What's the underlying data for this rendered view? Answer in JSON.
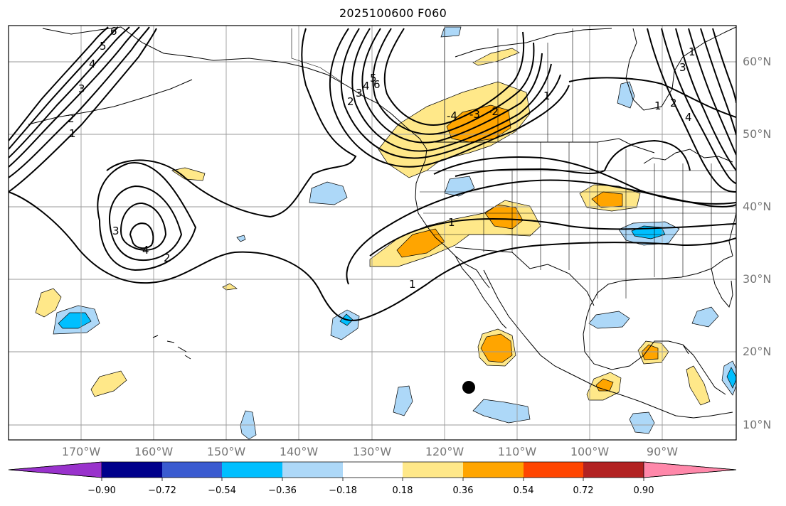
{
  "title": "2025100600 F060",
  "lat_labels": [
    "60°N",
    "50°N",
    "40°N",
    "30°N",
    "20°N",
    "10°N"
  ],
  "lon_labels": [
    "170°W",
    "160°W",
    "150°W",
    "140°W",
    "130°W",
    "120°W",
    "110°W",
    "100°W",
    "90°W"
  ],
  "contour_labels": [
    "6",
    "5",
    "4",
    "3",
    "2",
    "1",
    "1",
    "2",
    "3",
    "4",
    "1",
    "2",
    "3",
    "4",
    "5",
    "6",
    "1",
    "2",
    "3",
    "4",
    "-4",
    "-3",
    "-2",
    "1",
    "1"
  ],
  "colorbar": {
    "ticks": [
      "−0.90",
      "−0.72",
      "−0.54",
      "−0.36",
      "−0.18",
      "0.18",
      "0.36",
      "0.54",
      "0.72",
      "0.90"
    ],
    "colors": [
      "#9932cc",
      "#00008b",
      "#3a5bd0",
      "#00bfff",
      "#add8f8",
      "#ffffff",
      "#ffe889",
      "#ffa500",
      "#ff4500",
      "#b22222",
      "#ff88aa"
    ]
  },
  "fill_colors": {
    "light_blue": "#add8f8",
    "blue": "#00bfff",
    "light_yellow": "#ffe889",
    "orange": "#ffa500"
  }
}
